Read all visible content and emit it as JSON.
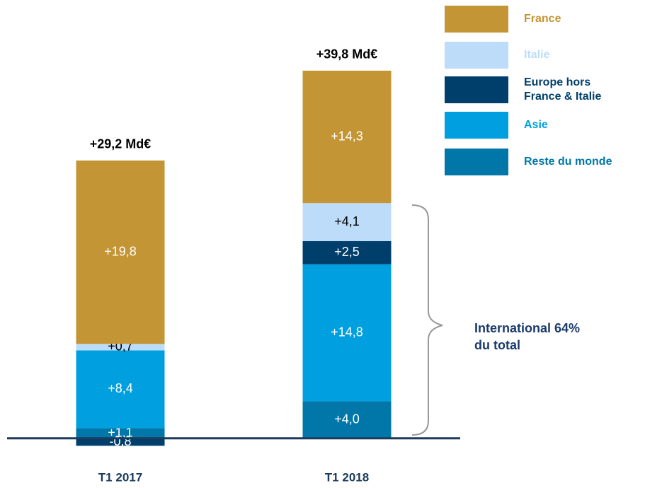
{
  "chart_data": {
    "type": "stacked_bar",
    "categories": [
      "T1 2017",
      "T1 2018"
    ],
    "totals": [
      "+29,2 Md€",
      "+39,8 Md€"
    ],
    "series": [
      {
        "name": "France",
        "color": "#c49535",
        "values": [
          19.8,
          14.3
        ],
        "value_labels": [
          "+19,8",
          "+14,3"
        ]
      },
      {
        "name": "Italie",
        "color": "#bcdcfa",
        "values": [
          0.7,
          4.1
        ],
        "value_labels": [
          "+0,7",
          "+4,1"
        ]
      },
      {
        "name": "Europe hors France & Italie",
        "color": "#003f6b",
        "values": [
          -0.8,
          2.5
        ],
        "value_labels": [
          "-0,8",
          "+2,5"
        ]
      },
      {
        "name": "Asie",
        "color": "#00a0e0",
        "values": [
          8.4,
          14.8
        ],
        "value_labels": [
          "+8,4",
          "+14,8"
        ]
      },
      {
        "name": "Reste du monde",
        "color": "#0077a8",
        "values": [
          1.1,
          4.0
        ],
        "value_labels": [
          "+1,1",
          "+4,0"
        ]
      }
    ],
    "stack_order": [
      4,
      3,
      2,
      1,
      0
    ],
    "ylim": [
      -2,
      40
    ],
    "annotation": "International 64% du total"
  }
}
